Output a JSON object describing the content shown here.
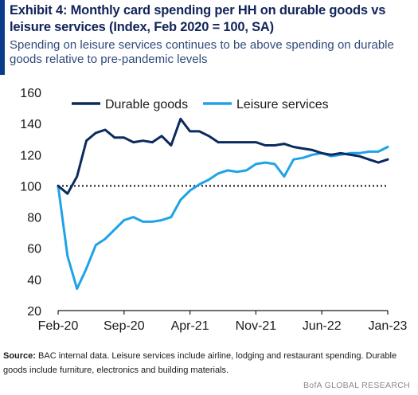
{
  "header": {
    "title": "Exhibit 4: Monthly card spending per HH on durable goods vs leisure services (Index, Feb 2020 = 100, SA)",
    "subtitle": "Spending on leisure services continues to be above spending on durable goods relative to pre-pandemic levels"
  },
  "footer": {
    "source_label": "Source:",
    "source_text": " BAC internal data. Leisure services include airline, lodging and restaurant spending. Durable goods include furniture, electronics and building materials.",
    "brand": "BofA GLOBAL RESEARCH"
  },
  "chart_data": {
    "type": "line",
    "x": [
      "Feb-20",
      "Mar-20",
      "Apr-20",
      "May-20",
      "Jun-20",
      "Jul-20",
      "Aug-20",
      "Sep-20",
      "Oct-20",
      "Nov-20",
      "Dec-20",
      "Jan-21",
      "Feb-21",
      "Mar-21",
      "Apr-21",
      "May-21",
      "Jun-21",
      "Jul-21",
      "Aug-21",
      "Sep-21",
      "Oct-21",
      "Nov-21",
      "Dec-21",
      "Jan-22",
      "Feb-22",
      "Mar-22",
      "Apr-22",
      "May-22",
      "Jun-22",
      "Jul-22",
      "Aug-22",
      "Sep-22",
      "Oct-22",
      "Nov-22",
      "Dec-22",
      "Jan-23"
    ],
    "x_tick_labels": [
      "Feb-20",
      "Sep-20",
      "Apr-21",
      "Nov-21",
      "Jun-22",
      "Jan-23"
    ],
    "x_tick_indices": [
      0,
      7,
      14,
      21,
      28,
      35
    ],
    "ylim": [
      20,
      160
    ],
    "yticks": [
      20,
      40,
      60,
      80,
      100,
      120,
      140,
      160
    ],
    "reference_line": {
      "y": 100,
      "style": "dotted"
    },
    "legend_placement": "top",
    "series": [
      {
        "name": "Durable goods",
        "color": "#0b2a5e",
        "values": [
          100,
          95,
          106,
          129,
          134,
          136,
          131,
          131,
          128,
          129,
          128,
          132,
          126,
          143,
          135,
          135,
          132,
          128,
          128,
          128,
          128,
          128,
          126,
          126,
          127,
          125,
          124,
          123,
          121,
          120,
          121,
          120,
          119,
          117,
          115,
          117
        ]
      },
      {
        "name": "Leisure services",
        "color": "#1fa3e6",
        "values": [
          100,
          55,
          34,
          47,
          62,
          66,
          72,
          78,
          80,
          77,
          77,
          78,
          80,
          91,
          97,
          101,
          104,
          108,
          110,
          109,
          110,
          114,
          115,
          114,
          106,
          117,
          118,
          120,
          121,
          119,
          120,
          121,
          121,
          122,
          122,
          125
        ]
      }
    ]
  }
}
